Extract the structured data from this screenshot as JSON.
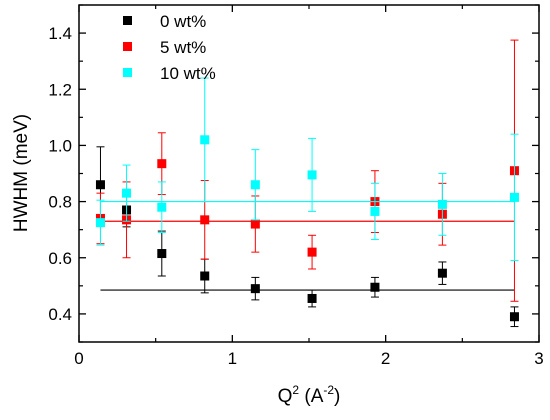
{
  "chart_data": {
    "type": "scatter",
    "title": "",
    "xlabel": {
      "base": "Q",
      "sup1": "2",
      "mid": " (A",
      "sup2": "-2",
      "end": ")"
    },
    "ylabel": "HWHM (meV)",
    "xlim": [
      0,
      3
    ],
    "ylim": [
      0.3,
      1.5
    ],
    "x_ticks": [
      0,
      1,
      2,
      3
    ],
    "x_tick_labels": [
      "0",
      "1",
      "2",
      "3"
    ],
    "x_minor_ticks": [
      0.5,
      1.5,
      2.5
    ],
    "y_ticks": [
      0.4,
      0.6,
      0.8,
      1.0,
      1.2,
      1.4
    ],
    "y_tick_labels": [
      "0.4",
      "0.6",
      "0.8",
      "1.0",
      "1.2",
      "1.4"
    ],
    "y_minor_ticks": [
      0.3,
      0.5,
      0.7,
      0.9,
      1.1,
      1.3,
      1.5
    ],
    "grid": false,
    "legend_position": "top-left",
    "series": [
      {
        "name": "0 wt%",
        "color": "#000000",
        "x": [
          0.14,
          0.31,
          0.54,
          0.82,
          1.15,
          1.52,
          1.93,
          2.37,
          2.84
        ],
        "y": [
          0.86,
          0.77,
          0.615,
          0.535,
          0.49,
          0.455,
          0.495,
          0.545,
          0.39
        ],
        "err": [
          0.135,
          0.06,
          0.08,
          0.06,
          0.04,
          0.03,
          0.035,
          0.04,
          0.035
        ],
        "fit_line": 0.485
      },
      {
        "name": "5 wt%",
        "color": "#ff0000",
        "x": [
          0.14,
          0.31,
          0.54,
          0.82,
          1.15,
          1.52,
          1.93,
          2.37,
          2.84
        ],
        "y": [
          0.74,
          0.735,
          0.935,
          0.735,
          0.72,
          0.62,
          0.8,
          0.755,
          0.91
        ],
        "err": [
          0.09,
          0.135,
          0.11,
          0.14,
          0.1,
          0.06,
          0.11,
          0.11,
          0.465
        ],
        "fit_line": 0.73
      },
      {
        "name": "10 wt%",
        "color": "#00ffff",
        "x": [
          0.14,
          0.31,
          0.54,
          0.82,
          1.15,
          1.52,
          1.93,
          2.37,
          2.84
        ],
        "y": [
          0.725,
          0.83,
          0.78,
          1.02,
          0.86,
          0.895,
          0.765,
          0.79,
          0.815
        ],
        "err": [
          0.08,
          0.1,
          0.09,
          0.22,
          0.125,
          0.13,
          0.1,
          0.11,
          0.225
        ],
        "fit_line": 0.8
      }
    ]
  }
}
